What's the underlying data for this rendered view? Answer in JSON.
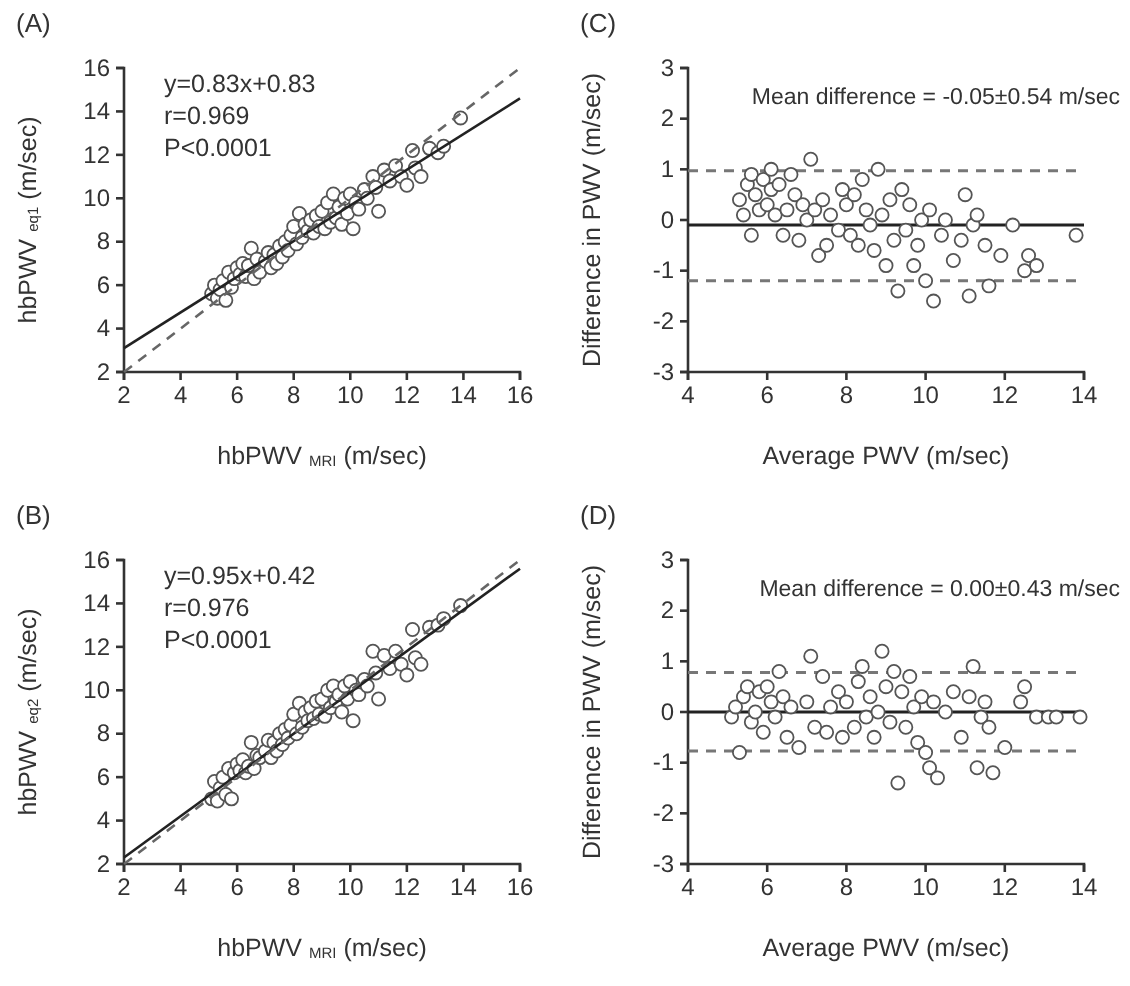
{
  "chart_data": [
    {
      "type": "scatter",
      "title": "(A)",
      "xlabel": "hbPWV $_{MRI}$ (m/sec)",
      "ylabel": "hbPWV $_{eq1}$ (m/sec)",
      "xlim": [
        2,
        16
      ],
      "ylim": [
        2,
        16
      ],
      "xticks": [
        2,
        4,
        6,
        8,
        10,
        12,
        14,
        16
      ],
      "yticks": [
        2,
        4,
        6,
        8,
        10,
        12,
        14,
        16
      ],
      "annotations": [
        "y=0.83x+0.83",
        "r=0.969",
        "P<0.0001"
      ],
      "series": [
        {
          "marker": "circle",
          "color": "#555555",
          "x": [
            5.1,
            5.2,
            5.3,
            5.4,
            5.5,
            5.6,
            5.7,
            5.8,
            5.9,
            6.0,
            6.1,
            6.2,
            6.3,
            6.4,
            6.5,
            6.6,
            6.7,
            6.8,
            7.0,
            7.1,
            7.2,
            7.3,
            7.4,
            7.5,
            7.6,
            7.7,
            7.8,
            7.9,
            8.0,
            8.1,
            8.2,
            8.3,
            8.4,
            8.5,
            8.6,
            8.7,
            8.8,
            8.9,
            9.0,
            9.1,
            9.2,
            9.3,
            9.4,
            9.5,
            9.6,
            9.7,
            9.8,
            9.9,
            10.0,
            10.1,
            10.2,
            10.3,
            10.5,
            10.6,
            10.8,
            10.9,
            11.0,
            11.2,
            11.4,
            11.6,
            11.8,
            12.0,
            12.2,
            12.3,
            12.5,
            12.8,
            13.1,
            13.3,
            13.9
          ],
          "values": [
            5.6,
            6.0,
            5.4,
            5.8,
            6.2,
            5.3,
            6.6,
            5.9,
            6.3,
            6.8,
            6.5,
            7.0,
            6.4,
            6.9,
            7.7,
            6.3,
            7.2,
            6.6,
            7.1,
            7.5,
            6.8,
            7.4,
            7.0,
            7.8,
            7.3,
            8.0,
            7.6,
            8.3,
            8.7,
            7.9,
            9.3,
            8.2,
            8.8,
            8.5,
            9.0,
            8.4,
            9.2,
            8.7,
            9.4,
            8.6,
            9.8,
            8.9,
            10.2,
            9.1,
            9.6,
            8.8,
            10.0,
            9.3,
            10.2,
            8.6,
            9.8,
            9.5,
            10.4,
            10.0,
            11.0,
            10.5,
            9.4,
            11.3,
            10.8,
            11.5,
            11.0,
            10.6,
            12.2,
            11.4,
            11.0,
            12.3,
            12.1,
            12.4,
            13.7
          ]
        },
        {
          "type": "line",
          "color": "#222222",
          "line_style": "solid",
          "x": [
            2,
            16
          ],
          "values": [
            3.1,
            14.6
          ]
        },
        {
          "type": "line",
          "color": "#666666",
          "line_style": "dashed",
          "x": [
            2,
            16
          ],
          "values": [
            2,
            16
          ]
        }
      ]
    },
    {
      "type": "scatter",
      "title": "(C)",
      "xlabel": "Average PWV (m/sec)",
      "ylabel": "Difference in PWV (m/sec)",
      "xlim": [
        4,
        14
      ],
      "ylim": [
        -3,
        3
      ],
      "xticks": [
        4,
        6,
        8,
        10,
        12,
        14
      ],
      "yticks": [
        -3,
        -2,
        -1,
        0,
        1,
        2,
        3
      ],
      "marker": "circle",
      "annotations": [
        "Mean difference = -0.05±0.54 m/sec"
      ],
      "ref_lines": [
        {
          "axis": "y",
          "value": -0.1,
          "color": "#222222",
          "line_style": "solid"
        },
        {
          "axis": "y",
          "value": 0.97,
          "color": "#777777",
          "line_style": "dashed"
        },
        {
          "axis": "y",
          "value": -1.2,
          "color": "#777777",
          "line_style": "dashed"
        }
      ],
      "series": [
        {
          "color": "#555555",
          "x": [
            5.3,
            5.4,
            5.5,
            5.6,
            5.6,
            5.7,
            5.8,
            5.9,
            6.0,
            6.1,
            6.1,
            6.2,
            6.3,
            6.4,
            6.5,
            6.6,
            6.7,
            6.8,
            6.9,
            7.0,
            7.1,
            7.2,
            7.3,
            7.4,
            7.5,
            7.6,
            7.8,
            7.9,
            8.0,
            8.1,
            8.2,
            8.3,
            8.4,
            8.5,
            8.6,
            8.7,
            8.8,
            8.9,
            9.0,
            9.1,
            9.2,
            9.3,
            9.4,
            9.5,
            9.6,
            9.7,
            9.8,
            9.9,
            10.0,
            10.1,
            10.2,
            10.4,
            10.5,
            10.7,
            10.9,
            11.0,
            11.1,
            11.2,
            11.3,
            11.5,
            11.6,
            11.9,
            12.2,
            12.5,
            12.6,
            12.8,
            13.8
          ],
          "values": [
            0.4,
            0.1,
            0.7,
            -0.3,
            0.9,
            0.5,
            0.2,
            0.8,
            0.3,
            1.0,
            0.6,
            0.1,
            0.7,
            -0.3,
            0.2,
            0.9,
            0.5,
            -0.4,
            0.3,
            0.0,
            1.2,
            0.2,
            -0.7,
            0.4,
            -0.5,
            0.1,
            -0.2,
            0.6,
            0.3,
            -0.3,
            0.5,
            -0.5,
            0.8,
            0.2,
            -0.1,
            -0.6,
            1.0,
            0.1,
            -0.9,
            0.4,
            -0.4,
            -1.4,
            0.6,
            -0.2,
            0.3,
            -0.9,
            -0.5,
            0.0,
            -1.2,
            0.2,
            -1.6,
            -0.3,
            0.0,
            -0.8,
            -0.4,
            0.5,
            -1.5,
            -0.1,
            0.1,
            -0.5,
            -1.3,
            -0.7,
            -0.1,
            -1.0,
            -0.7,
            -0.9,
            -0.3
          ]
        }
      ]
    },
    {
      "type": "scatter",
      "title": "(B)",
      "xlabel": "hbPWV $_{MRI}$ (m/sec)",
      "ylabel": "hbPWV $_{eq2}$ (m/sec)",
      "xlim": [
        2,
        16
      ],
      "ylim": [
        2,
        16
      ],
      "xticks": [
        2,
        4,
        6,
        8,
        10,
        12,
        14,
        16
      ],
      "yticks": [
        2,
        4,
        6,
        8,
        10,
        12,
        14,
        16
      ],
      "annotations": [
        "y=0.95x+0.42",
        "r=0.976",
        "P<0.0001"
      ],
      "series": [
        {
          "marker": "circle",
          "color": "#555555",
          "x": [
            5.1,
            5.2,
            5.3,
            5.4,
            5.5,
            5.6,
            5.7,
            5.8,
            5.9,
            6.0,
            6.1,
            6.2,
            6.3,
            6.4,
            6.5,
            6.6,
            6.7,
            6.8,
            7.0,
            7.1,
            7.2,
            7.3,
            7.4,
            7.5,
            7.6,
            7.7,
            7.8,
            7.9,
            8.0,
            8.1,
            8.2,
            8.3,
            8.4,
            8.5,
            8.6,
            8.7,
            8.8,
            8.9,
            9.0,
            9.1,
            9.2,
            9.3,
            9.4,
            9.5,
            9.6,
            9.7,
            9.8,
            9.9,
            10.0,
            10.1,
            10.2,
            10.3,
            10.5,
            10.6,
            10.8,
            10.9,
            11.0,
            11.2,
            11.4,
            11.6,
            11.8,
            12.0,
            12.2,
            12.3,
            12.5,
            12.8,
            13.1,
            13.3,
            13.9
          ],
          "values": [
            5.0,
            5.8,
            4.9,
            5.5,
            6.0,
            5.2,
            6.4,
            5.0,
            6.2,
            6.6,
            6.3,
            6.8,
            6.2,
            6.5,
            7.6,
            6.4,
            7.0,
            6.9,
            7.2,
            7.7,
            6.9,
            7.6,
            7.2,
            8.0,
            7.5,
            8.2,
            7.8,
            8.4,
            8.9,
            8.0,
            9.4,
            8.3,
            9.0,
            8.6,
            9.2,
            8.7,
            9.5,
            8.9,
            9.6,
            8.8,
            10.0,
            9.2,
            10.2,
            9.5,
            9.8,
            9.0,
            10.2,
            9.6,
            10.4,
            8.6,
            10.0,
            9.8,
            10.5,
            10.2,
            11.8,
            10.8,
            9.6,
            11.6,
            11.0,
            11.8,
            11.2,
            10.7,
            12.8,
            11.5,
            11.2,
            12.9,
            13.0,
            13.3,
            13.9
          ]
        },
        {
          "type": "line",
          "color": "#222222",
          "line_style": "solid",
          "x": [
            2,
            16
          ],
          "values": [
            2.3,
            15.6
          ]
        },
        {
          "type": "line",
          "color": "#666666",
          "line_style": "dashed",
          "x": [
            2,
            16
          ],
          "values": [
            2,
            16
          ]
        }
      ]
    },
    {
      "type": "scatter",
      "title": "(D)",
      "xlabel": "Average PWV (m/sec)",
      "ylabel": "Difference in PWV (m/sec)",
      "xlim": [
        4,
        14
      ],
      "ylim": [
        -3,
        3
      ],
      "xticks": [
        4,
        6,
        8,
        10,
        12,
        14
      ],
      "yticks": [
        -3,
        -2,
        -1,
        0,
        1,
        2,
        3
      ],
      "marker": "circle",
      "annotations": [
        "Mean difference = 0.00±0.43 m/sec"
      ],
      "ref_lines": [
        {
          "axis": "y",
          "value": 0,
          "color": "#222222",
          "line_style": "solid"
        },
        {
          "axis": "y",
          "value": 0.78,
          "color": "#777777",
          "line_style": "dashed"
        },
        {
          "axis": "y",
          "value": -0.77,
          "color": "#777777",
          "line_style": "dashed"
        }
      ],
      "series": [
        {
          "color": "#555555",
          "x": [
            5.1,
            5.2,
            5.3,
            5.4,
            5.5,
            5.6,
            5.7,
            5.8,
            5.9,
            6.0,
            6.1,
            6.2,
            6.3,
            6.4,
            6.5,
            6.6,
            6.8,
            7.0,
            7.1,
            7.2,
            7.4,
            7.5,
            7.6,
            7.8,
            7.9,
            8.0,
            8.2,
            8.3,
            8.4,
            8.5,
            8.6,
            8.7,
            8.8,
            8.9,
            9.0,
            9.1,
            9.2,
            9.3,
            9.4,
            9.5,
            9.6,
            9.7,
            9.8,
            9.9,
            10.0,
            10.1,
            10.2,
            10.3,
            10.5,
            10.7,
            10.9,
            11.1,
            11.2,
            11.3,
            11.4,
            11.5,
            11.6,
            11.7,
            12.0,
            12.4,
            12.5,
            12.8,
            13.1,
            13.3,
            13.9
          ],
          "values": [
            -0.1,
            0.1,
            -0.8,
            0.3,
            0.5,
            -0.2,
            0.0,
            0.4,
            -0.4,
            0.5,
            0.2,
            -0.1,
            0.8,
            0.3,
            -0.5,
            0.1,
            -0.7,
            0.2,
            1.1,
            -0.3,
            0.7,
            -0.4,
            0.1,
            0.4,
            -0.5,
            0.2,
            -0.3,
            0.6,
            0.9,
            -0.1,
            0.3,
            -0.5,
            0.0,
            1.2,
            0.5,
            -0.2,
            0.8,
            -1.4,
            0.4,
            -0.3,
            0.7,
            0.1,
            -0.6,
            0.3,
            -0.8,
            -1.1,
            0.2,
            -1.3,
            0.0,
            0.4,
            -0.5,
            0.3,
            0.9,
            -1.1,
            -0.1,
            0.2,
            -0.3,
            -1.2,
            -0.7,
            0.2,
            0.5,
            -0.1,
            -0.1,
            -0.1,
            -0.1
          ]
        }
      ]
    }
  ]
}
